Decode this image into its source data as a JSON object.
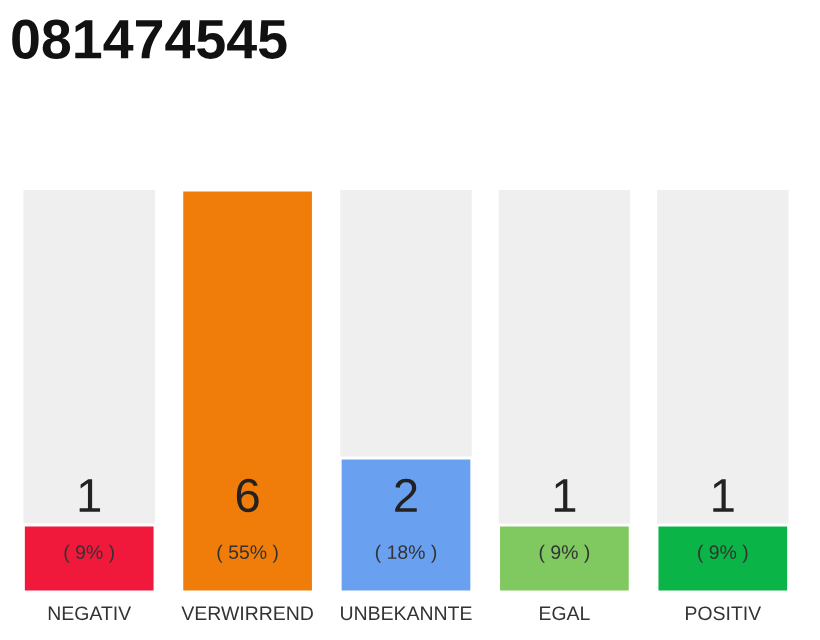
{
  "chart_data": {
    "type": "bar",
    "title": "081474545",
    "categories": [
      "NEGATIV",
      "VERWIRREND",
      "UNBEKANNTE",
      "EGAL",
      "POSITIV"
    ],
    "values": [
      1,
      6,
      2,
      1,
      1
    ],
    "colors": [
      "#f0193c",
      "#f07d0a",
      "#6aa0f0",
      "#80c860",
      "#0ab446"
    ],
    "data_labels": true,
    "annotations": [
      "( 9% )",
      "( 55% )",
      "( 18% )",
      "( 9% )",
      "( 9% )"
    ],
    "grid": false,
    "legend": false
  }
}
